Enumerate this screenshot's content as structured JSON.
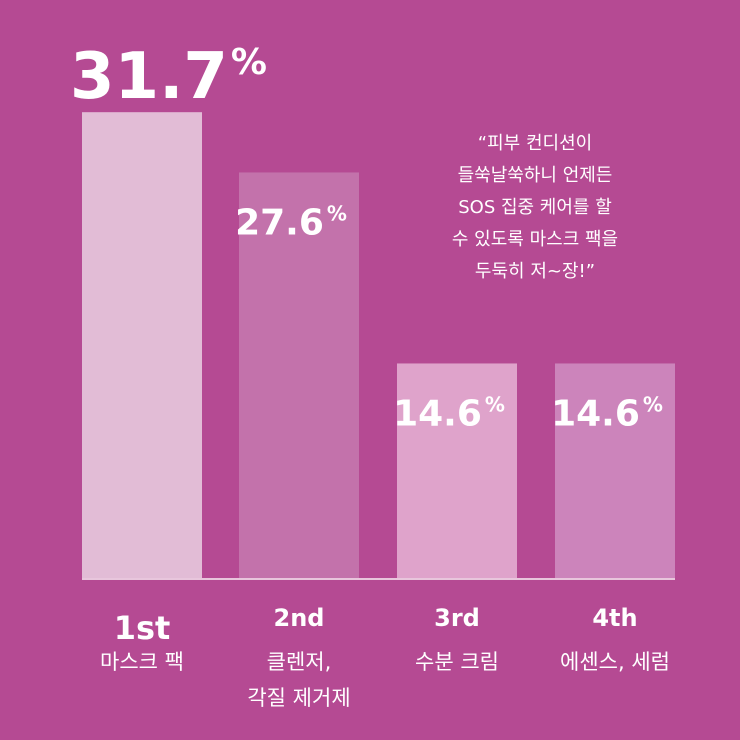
{
  "chart_data": {
    "type": "bar",
    "categories": [
      "1st",
      "2nd",
      "3rd",
      "4th"
    ],
    "category_labels": [
      [
        "마스크 팩"
      ],
      [
        "클렌저,",
        "각질 제거제"
      ],
      [
        "수분 크림"
      ],
      [
        "에센스, 세럼"
      ]
    ],
    "values": [
      31.7,
      27.6,
      14.6,
      14.6
    ],
    "value_labels": [
      "31.7",
      "27.6",
      "14.6",
      "14.6"
    ],
    "unit": "%",
    "ylim": [
      0,
      36
    ],
    "grid": false,
    "legend": "none"
  },
  "quote": {
    "lines": [
      "“피부 컨디션이",
      "들쑥날쑥하니 언제든",
      "SOS 집중 케어를 할",
      "수 있도록 마스크 팩을",
      "두둑히 저~장!”"
    ]
  },
  "colors": {
    "background": "#b54a93",
    "bars": [
      "#e2bcd6",
      "#c372ab",
      "#dfa3cb",
      "#cc84bb"
    ],
    "baseline": "#e8c6dc",
    "text": "#ffffff"
  }
}
